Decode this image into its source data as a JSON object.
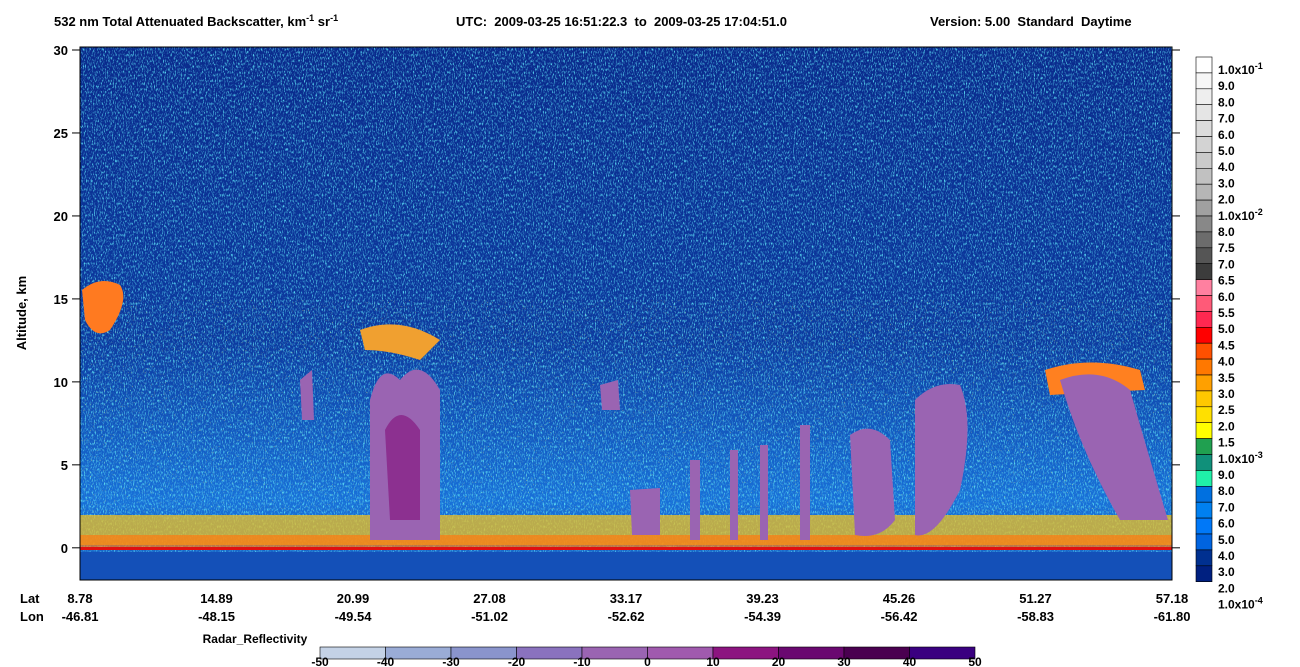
{
  "chart_data": {
    "type": "curtain",
    "title": [
      {
        "text": "532 nm Total Attenuated Backscatter, km",
        "sup": false
      },
      {
        "text": "-1",
        "sup": true
      },
      {
        "text": " sr",
        "sup": false
      },
      {
        "text": "-1",
        "sup": true
      }
    ],
    "utc": "UTC:  2009-03-25 16:51:22.3  to  2009-03-25 17:04:51.0",
    "version": "Version: 5.00  Standard  Daytime",
    "y_label": "Altitude, km",
    "ylim": [
      -2,
      30
    ],
    "yticks": [
      0,
      5,
      10,
      15,
      20,
      25,
      30
    ],
    "x_rows": [
      {
        "name": "Lat",
        "labels": [
          "8.78",
          "14.89",
          "20.99",
          "27.08",
          "33.17",
          "39.23",
          "45.26",
          "51.27",
          "57.18"
        ]
      },
      {
        "name": "Lon",
        "labels": [
          "-46.81",
          "-48.15",
          "-49.54",
          "-51.02",
          "-52.62",
          "-54.39",
          "-56.42",
          "-58.83",
          "-61.80"
        ]
      }
    ],
    "colorbar": {
      "labels": [
        {
          "text": "1.0x10",
          "sup": "-1"
        },
        {
          "text": "9.0"
        },
        {
          "text": "8.0"
        },
        {
          "text": "7.0"
        },
        {
          "text": "6.0"
        },
        {
          "text": "5.0"
        },
        {
          "text": "4.0"
        },
        {
          "text": "3.0"
        },
        {
          "text": "2.0"
        },
        {
          "text": "1.0x10",
          "sup": "-2"
        },
        {
          "text": "8.0"
        },
        {
          "text": "7.5"
        },
        {
          "text": "7.0"
        },
        {
          "text": "6.5"
        },
        {
          "text": "6.0"
        },
        {
          "text": "5.5"
        },
        {
          "text": "5.0"
        },
        {
          "text": "4.5"
        },
        {
          "text": "4.0"
        },
        {
          "text": "3.5"
        },
        {
          "text": "3.0"
        },
        {
          "text": "2.5"
        },
        {
          "text": "2.0"
        },
        {
          "text": "1.5"
        },
        {
          "text": "1.0x10",
          "sup": "-3"
        },
        {
          "text": "9.0"
        },
        {
          "text": "8.0"
        },
        {
          "text": "7.0"
        },
        {
          "text": "6.0"
        },
        {
          "text": "5.0"
        },
        {
          "text": "4.0"
        },
        {
          "text": "3.0"
        },
        {
          "text": "2.0"
        },
        {
          "text": "1.0x10",
          "sup": "-4"
        }
      ],
      "colors": [
        "#ffffff",
        "#f6f6f6",
        "#eeeeee",
        "#e5e5e5",
        "#dcdcdc",
        "#d3d3d3",
        "#cacaca",
        "#c1c1c1",
        "#b6b6b6",
        "#a0a0a0",
        "#888888",
        "#6c6c6c",
        "#555555",
        "#3c3c3c",
        "#ff80a0",
        "#ff5a78",
        "#ff2850",
        "#ff0000",
        "#ff5000",
        "#ff7800",
        "#ffa000",
        "#ffc800",
        "#ffe000",
        "#ffff00",
        "#20a050",
        "#10907a",
        "#20f0a8",
        "#0070e0",
        "#0080f0",
        "#0078f8",
        "#0064e0",
        "#003090",
        "#002080"
      ]
    },
    "radar": {
      "label": "Radar_Reflectivity",
      "ticks": [
        -50,
        -40,
        -30,
        -20,
        -10,
        0,
        10,
        20,
        30,
        40,
        50
      ],
      "colors": [
        "#c4d2e6",
        "#9aacd6",
        "#8a94cc",
        "#8a72be",
        "#9a64b2",
        "#a05aae",
        "#8c1480",
        "#6a0870",
        "#4a0050",
        "#3a0080"
      ]
    }
  }
}
